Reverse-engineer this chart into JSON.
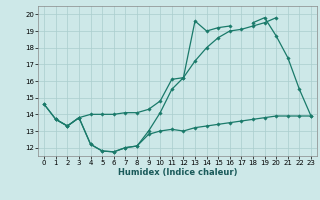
{
  "title": "",
  "xlabel": "Humidex (Indice chaleur)",
  "xlim": [
    -0.5,
    23.5
  ],
  "ylim": [
    11.5,
    20.5
  ],
  "xticks": [
    0,
    1,
    2,
    3,
    4,
    5,
    6,
    7,
    8,
    9,
    10,
    11,
    12,
    13,
    14,
    15,
    16,
    17,
    18,
    19,
    20,
    21,
    22,
    23
  ],
  "yticks": [
    12,
    13,
    14,
    15,
    16,
    17,
    18,
    19,
    20
  ],
  "bg_color": "#cde8e8",
  "grid_color": "#aacece",
  "line_color": "#1a7a6a",
  "line1_x": [
    0,
    1,
    2,
    3,
    4,
    5,
    6,
    7,
    8,
    9,
    10,
    11,
    12,
    13,
    14,
    15,
    16,
    17,
    18,
    19,
    20,
    21,
    22,
    23
  ],
  "line1_y": [
    14.6,
    13.7,
    13.3,
    13.8,
    12.2,
    11.8,
    11.75,
    12.0,
    12.1,
    13.0,
    14.1,
    15.5,
    16.2,
    19.6,
    19.0,
    19.2,
    19.3,
    null,
    19.5,
    19.8,
    18.7,
    17.4,
    15.5,
    13.9
  ],
  "line2_x": [
    0,
    1,
    2,
    3,
    4,
    5,
    6,
    7,
    8,
    9,
    10,
    11,
    12,
    13,
    14,
    15,
    16,
    17,
    18,
    19,
    20
  ],
  "line2_y": [
    14.6,
    13.7,
    13.3,
    13.8,
    14.0,
    14.0,
    14.0,
    14.1,
    14.1,
    14.3,
    14.8,
    16.1,
    16.2,
    17.2,
    18.0,
    18.6,
    19.0,
    19.1,
    19.3,
    19.5,
    19.8
  ],
  "line3_x": [
    1,
    2,
    3,
    4,
    5,
    6,
    7,
    8,
    9,
    10,
    11,
    12,
    13,
    14,
    15,
    16,
    17,
    18,
    19,
    20,
    21,
    22,
    23
  ],
  "line3_y": [
    13.7,
    13.3,
    13.8,
    12.2,
    11.8,
    11.75,
    12.0,
    12.1,
    12.8,
    13.0,
    13.1,
    13.0,
    13.2,
    13.3,
    13.4,
    13.5,
    13.6,
    13.7,
    13.8,
    13.9,
    13.9,
    13.9,
    13.9
  ]
}
